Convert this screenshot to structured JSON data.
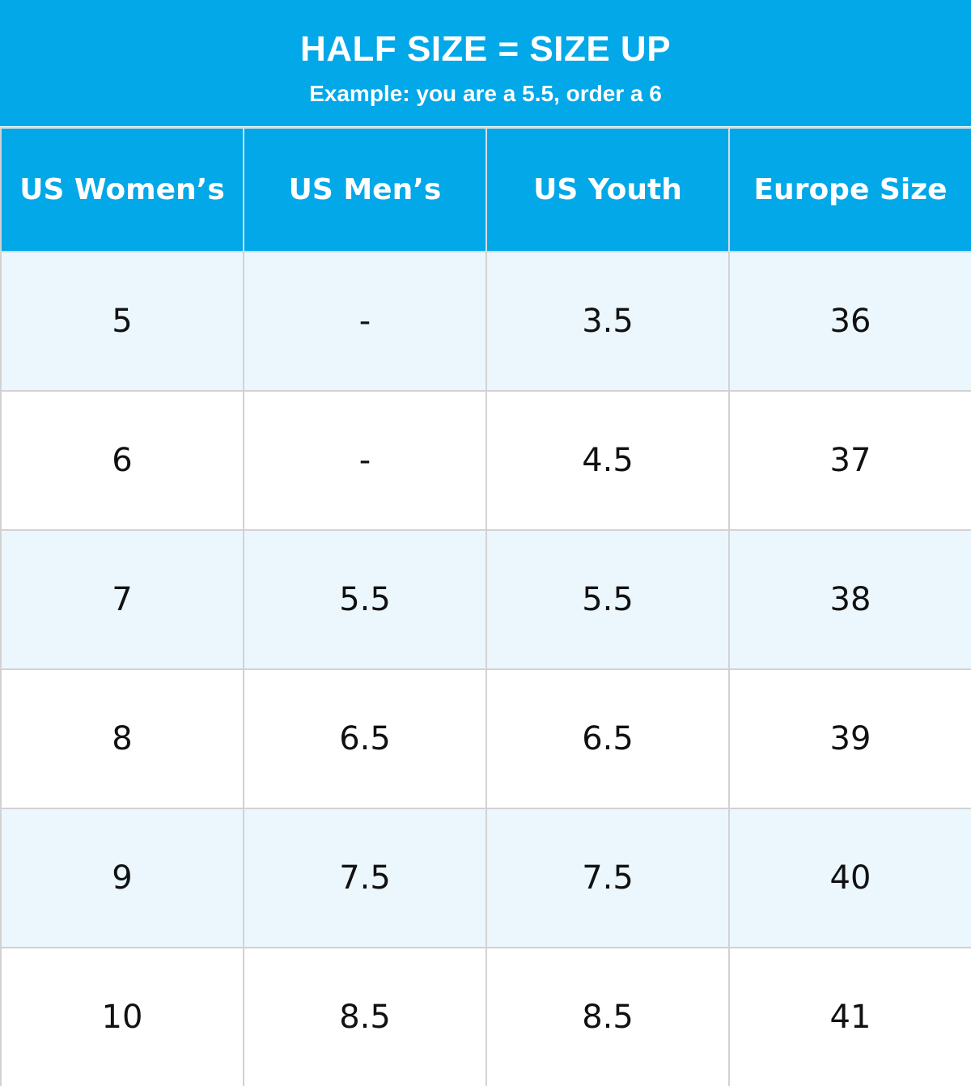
{
  "banner": {
    "title": "HALF SIZE = SIZE UP",
    "subtitle": "Example: you are a 5.5, order a 6"
  },
  "colors": {
    "header_background": "#02a8e8",
    "header_text": "#ffffff",
    "shaded_row": "#ebf7fd",
    "plain_row": "#ffffff",
    "grid_line": "#d2d2d2",
    "cell_text": "#111111"
  },
  "table": {
    "headers": [
      "US Women’s",
      "US Men’s",
      "US Youth",
      "Europe Size"
    ],
    "rows": [
      [
        "5",
        "-",
        "3.5",
        "36"
      ],
      [
        "6",
        "-",
        "4.5",
        "37"
      ],
      [
        "7",
        "5.5",
        "5.5",
        "38"
      ],
      [
        "8",
        "6.5",
        "6.5",
        "39"
      ],
      [
        "9",
        "7.5",
        "7.5",
        "40"
      ],
      [
        "10",
        "8.5",
        "8.5",
        "41"
      ]
    ]
  }
}
